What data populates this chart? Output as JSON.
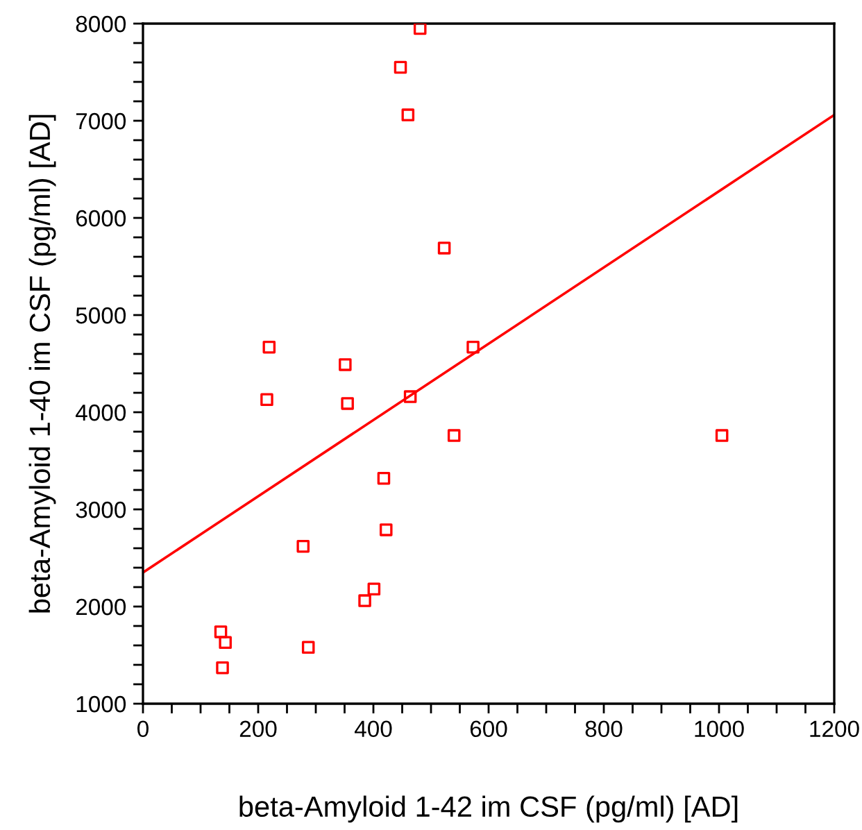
{
  "chart_data": {
    "type": "scatter",
    "xlabel": "beta-Amyloid 1-42 im CSF (pg/ml) [AD]",
    "ylabel": "beta-Amyloid 1-40 im CSF (pg/ml) [AD]",
    "xlim": [
      0,
      1200
    ],
    "ylim": [
      1000,
      8000
    ],
    "xticks": [
      0,
      {
        "value": 50,
        "label": null
      },
      {
        "value": 100,
        "label": null
      },
      {
        "value": 150,
        "label": null
      },
      200,
      {
        "value": 250,
        "label": null
      },
      {
        "value": 300,
        "label": null
      },
      {
        "value": 350,
        "label": null
      },
      400,
      {
        "value": 450,
        "label": null
      },
      {
        "value": 500,
        "label": null
      },
      {
        "value": 550,
        "label": null
      },
      600,
      {
        "value": 650,
        "label": null
      },
      {
        "value": 700,
        "label": null
      },
      {
        "value": 750,
        "label": null
      },
      800,
      {
        "value": 850,
        "label": null
      },
      {
        "value": 900,
        "label": null
      },
      {
        "value": 950,
        "label": null
      },
      1000,
      {
        "value": 1050,
        "label": null
      },
      {
        "value": 1100,
        "label": null
      },
      {
        "value": 1150,
        "label": null
      },
      1200
    ],
    "yticks": [
      1000,
      {
        "value": 1200,
        "label": null
      },
      {
        "value": 1400,
        "label": null
      },
      {
        "value": 1600,
        "label": null
      },
      {
        "value": 1800,
        "label": null
      },
      2000,
      {
        "value": 2200,
        "label": null
      },
      {
        "value": 2400,
        "label": null
      },
      {
        "value": 2600,
        "label": null
      },
      {
        "value": 2800,
        "label": null
      },
      3000,
      {
        "value": 3200,
        "label": null
      },
      {
        "value": 3400,
        "label": null
      },
      {
        "value": 3600,
        "label": null
      },
      {
        "value": 3800,
        "label": null
      },
      4000,
      {
        "value": 4200,
        "label": null
      },
      {
        "value": 4400,
        "label": null
      },
      {
        "value": 4600,
        "label": null
      },
      {
        "value": 4800,
        "label": null
      },
      5000,
      {
        "value": 5200,
        "label": null
      },
      {
        "value": 5400,
        "label": null
      },
      {
        "value": 5600,
        "label": null
      },
      {
        "value": 5800,
        "label": null
      },
      6000,
      {
        "value": 6200,
        "label": null
      },
      {
        "value": 6400,
        "label": null
      },
      {
        "value": 6600,
        "label": null
      },
      {
        "value": 6800,
        "label": null
      },
      7000,
      {
        "value": 7200,
        "label": null
      },
      {
        "value": 7400,
        "label": null
      },
      {
        "value": 7600,
        "label": null
      },
      {
        "value": 7800,
        "label": null
      },
      8000
    ],
    "grid": false,
    "legend": false,
    "marker": "square",
    "series": [
      {
        "color": "#ff0000",
        "x": [
          481,
          447,
          460,
          523,
          219,
          573,
          351,
          215,
          355,
          464,
          540,
          1005,
          418,
          422,
          278,
          401,
          385,
          135,
          143,
          287,
          138
        ],
        "values": [
          7950,
          7550,
          7060,
          5690,
          4670,
          4670,
          4490,
          4130,
          4090,
          4160,
          3760,
          3760,
          3320,
          2790,
          2620,
          2180,
          2060,
          1740,
          1630,
          1580,
          1370
        ]
      },
      {
        "type": "line",
        "color": "#ff0000",
        "x": [
          0,
          1200
        ],
        "values": [
          2350,
          7060
        ],
        "marker": "none",
        "line_style": "solid"
      }
    ]
  }
}
